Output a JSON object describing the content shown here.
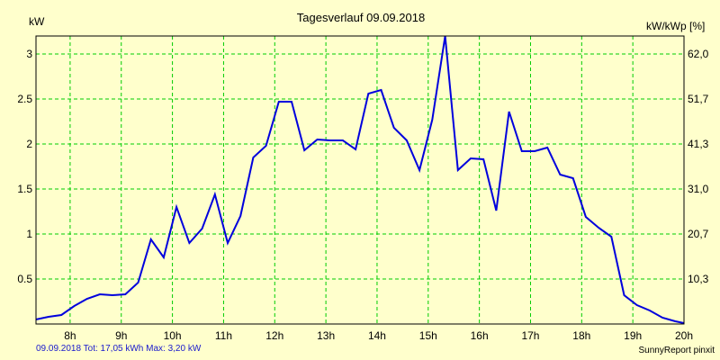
{
  "chart_data": {
    "type": "line",
    "title": "Tagesverlauf 09.09.2018",
    "ylabel_left": "kW",
    "ylabel_right": "kW/kWp [%]",
    "ylim": [
      0,
      3.2
    ],
    "xlim": [
      7.333,
      20.0
    ],
    "y_ticks": [
      0.5,
      1,
      1.5,
      2,
      2.5,
      3
    ],
    "y_tick_labels": [
      "0.5",
      "1",
      "1.5",
      "2",
      "2.5",
      "3"
    ],
    "y2_ticks": [
      0.5,
      1,
      1.5,
      2,
      2.5,
      3
    ],
    "y2_tick_labels": [
      "10,3",
      "20,7",
      "31,0",
      "41,3",
      "51,7",
      "62,0"
    ],
    "x_ticks": [
      8,
      9,
      10,
      11,
      12,
      13,
      14,
      15,
      16,
      17,
      18,
      19,
      20
    ],
    "x_tick_labels": [
      "8h",
      "9h",
      "10h",
      "11h",
      "12h",
      "13h",
      "14h",
      "15h",
      "16h",
      "17h",
      "18h",
      "19h",
      "20h"
    ],
    "grid": true,
    "line_color": "#0000dd",
    "grid_color": "#00cc00",
    "x": [
      7.33,
      7.58,
      7.83,
      8.08,
      8.33,
      8.58,
      8.83,
      9.08,
      9.33,
      9.58,
      9.83,
      10.08,
      10.33,
      10.58,
      10.83,
      11.08,
      11.33,
      11.58,
      11.83,
      12.08,
      12.33,
      12.58,
      12.83,
      13.08,
      13.33,
      13.58,
      13.83,
      14.08,
      14.33,
      14.58,
      14.83,
      15.08,
      15.33,
      15.58,
      15.83,
      16.08,
      16.33,
      16.58,
      16.83,
      17.08,
      17.33,
      17.58,
      17.83,
      18.08,
      18.33,
      18.58,
      18.83,
      19.08,
      19.33,
      19.58,
      19.83,
      20.0
    ],
    "series": [
      {
        "values": [
          0.05,
          0.08,
          0.1,
          0.2,
          0.28,
          0.33,
          0.32,
          0.33,
          0.46,
          0.94,
          0.74,
          1.3,
          0.9,
          1.06,
          1.44,
          0.9,
          1.2,
          1.85,
          1.98,
          2.47,
          2.47,
          1.93,
          2.05,
          2.04,
          2.04,
          1.94,
          2.56,
          2.6,
          2.18,
          2.04,
          1.71,
          2.27,
          3.2,
          1.71,
          1.84,
          1.83,
          1.26,
          2.36,
          1.92,
          1.92,
          1.96,
          1.66,
          1.62,
          1.19,
          1.07,
          0.97,
          0.32,
          0.21,
          0.15,
          0.07,
          0.03,
          0.01
        ]
      }
    ]
  },
  "footer": {
    "left": "09.09.2018 Tot: 17,05 kWh Max: 3,20 kW",
    "right": "SunnyReport pinxit"
  }
}
